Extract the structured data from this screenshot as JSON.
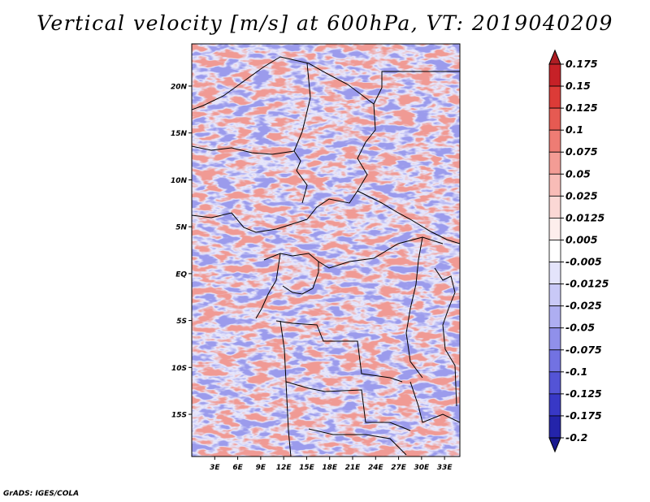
{
  "title": "Vertical velocity [m/s] at 600hPa, VT: 2019040209",
  "credit": "GrADS: IGES/COLA",
  "chart_data": {
    "type": "heatmap",
    "title": "Vertical velocity [m/s] at 600hPa, VT: 2019040209",
    "variable": "Vertical velocity",
    "units": "m/s",
    "level": "600hPa",
    "valid_time": "2019040209",
    "xlim": [
      0,
      35
    ],
    "ylim": [
      -19.5,
      24.5
    ],
    "x_ticks": [
      {
        "value": 3,
        "label": "3E"
      },
      {
        "value": 6,
        "label": "6E"
      },
      {
        "value": 9,
        "label": "9E"
      },
      {
        "value": 12,
        "label": "12E"
      },
      {
        "value": 15,
        "label": "15E"
      },
      {
        "value": 18,
        "label": "18E"
      },
      {
        "value": 21,
        "label": "21E"
      },
      {
        "value": 24,
        "label": "24E"
      },
      {
        "value": 27,
        "label": "27E"
      },
      {
        "value": 30,
        "label": "30E"
      },
      {
        "value": 33,
        "label": "33E"
      }
    ],
    "y_ticks": [
      {
        "value": 20,
        "label": "20N"
      },
      {
        "value": 15,
        "label": "15N"
      },
      {
        "value": 10,
        "label": "10N"
      },
      {
        "value": 5,
        "label": "5N"
      },
      {
        "value": 0,
        "label": "EQ"
      },
      {
        "value": -5,
        "label": "5S"
      },
      {
        "value": -10,
        "label": "10S"
      },
      {
        "value": -15,
        "label": "15S"
      }
    ],
    "colorbar": {
      "labels": [
        "0.175",
        "0.15",
        "0.125",
        "0.1",
        "0.075",
        "0.05",
        "0.025",
        "0.0125",
        "0.005",
        "-0.005",
        "-0.0125",
        "-0.025",
        "-0.05",
        "-0.075",
        "-0.1",
        "-0.125",
        "-0.175",
        "-0.2"
      ],
      "colors": [
        "#ae1d23",
        "#c62127",
        "#dc3b37",
        "#e65a52",
        "#ee7c74",
        "#f39c95",
        "#f8bcb7",
        "#fbd8d5",
        "#fdeeec",
        "#ffffff",
        "#e4e4fb",
        "#c9c9f7",
        "#aeaef1",
        "#9090ea",
        "#7272e2",
        "#5454d6",
        "#3838c6",
        "#2424aa",
        "#1a1a90"
      ]
    }
  }
}
